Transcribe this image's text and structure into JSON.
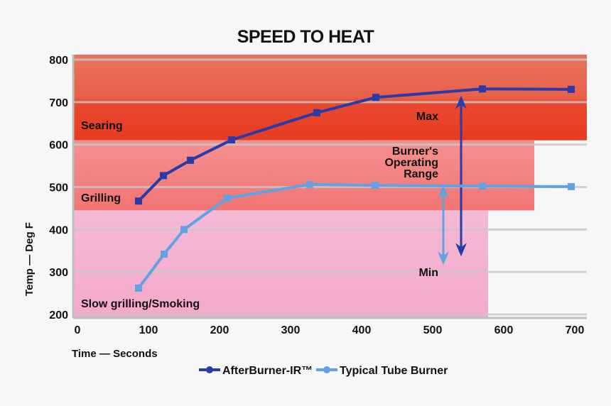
{
  "chart_data": {
    "type": "line",
    "title": "SPEED TO HEAT",
    "xlabel": "Time — Seconds",
    "ylabel": "Temp — Deg F",
    "xlim": [
      0,
      700
    ],
    "ylim": [
      200,
      800
    ],
    "xticks": [
      0,
      100,
      200,
      300,
      400,
      500,
      600,
      700
    ],
    "yticks": [
      200,
      300,
      400,
      500,
      600,
      700,
      800
    ],
    "grid": true,
    "legend": "bottom",
    "series": [
      {
        "name": "AfterBurner-IR™",
        "color": "#2a3aa8",
        "x": [
          86,
          121,
          159,
          217,
          337,
          420,
          570,
          695
        ],
        "y": [
          467,
          527,
          563,
          611,
          675,
          711,
          731,
          730
        ]
      },
      {
        "name": "Typical Tube Burner",
        "color": "#62a2e0",
        "x": [
          86,
          122,
          150,
          211,
          327,
          419,
          570,
          695
        ],
        "y": [
          262,
          342,
          400,
          474,
          506,
          504,
          502,
          501
        ]
      }
    ],
    "zones": [
      {
        "label": "Searing",
        "y": [
          610,
          810
        ],
        "x_end": 700,
        "color": "#e8402a"
      },
      {
        "label": "Grilling",
        "y": [
          445,
          610
        ],
        "x_end": 635,
        "color": "#f38481"
      },
      {
        "label": "Slow grilling/Smoking",
        "y": [
          192,
          445
        ],
        "x_end": 570,
        "color": "#f4b0cf"
      }
    ],
    "annotations": {
      "max": "Max",
      "range_lines": [
        "Burner's",
        "Operating",
        "Range"
      ],
      "min": "Min",
      "max_arrow": {
        "x": 540,
        "y": [
          712,
          340
        ]
      },
      "min_arrow": {
        "x": 515,
        "y": [
          500,
          320
        ]
      }
    }
  }
}
